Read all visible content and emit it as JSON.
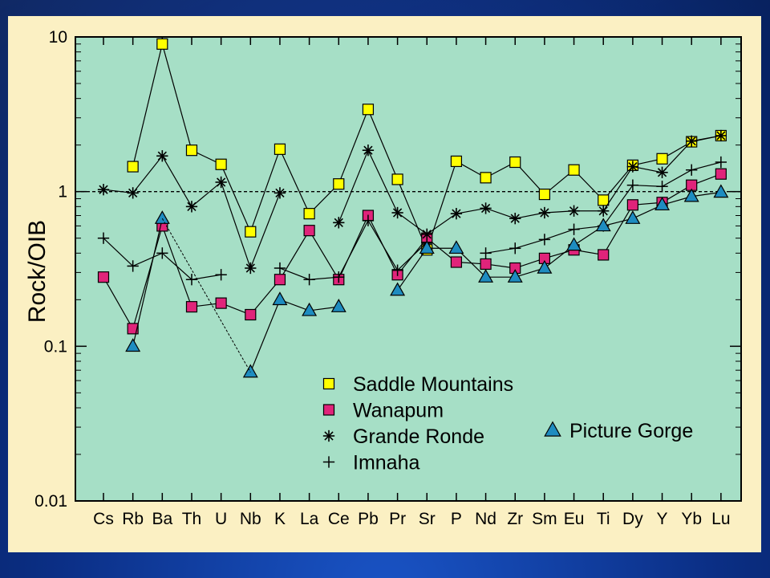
{
  "chart_data": {
    "type": "line",
    "ylabel": "Rock/OIB",
    "xlabel": "",
    "yscale": "log",
    "ylim": [
      0.01,
      10
    ],
    "yticks": [
      "0.01",
      "0.1",
      "1",
      "10"
    ],
    "reference_line": 1,
    "categories": [
      "Cs",
      "Rb",
      "Ba",
      "Th",
      "U",
      "Nb",
      "K",
      "La",
      "Ce",
      "Pb",
      "Pr",
      "Sr",
      "P",
      "Nd",
      "Zr",
      "Sm",
      "Eu",
      "Ti",
      "Dy",
      "Y",
      "Yb",
      "Lu"
    ],
    "series": [
      {
        "name": "Saddle Mountains",
        "marker": "square",
        "color": "#ffff00",
        "values": [
          null,
          1.45,
          9.0,
          1.85,
          1.5,
          0.55,
          1.88,
          0.72,
          1.12,
          3.4,
          1.2,
          0.42,
          1.57,
          1.23,
          1.55,
          0.96,
          1.38,
          0.88,
          1.48,
          1.63,
          2.1,
          2.3
        ]
      },
      {
        "name": "Wanapum",
        "marker": "square",
        "color": "#e0247a",
        "values": [
          0.28,
          0.13,
          0.6,
          0.18,
          0.19,
          0.16,
          0.27,
          0.56,
          0.27,
          0.7,
          0.29,
          0.5,
          0.35,
          0.34,
          0.32,
          0.37,
          0.42,
          0.39,
          0.82,
          0.85,
          1.1,
          1.3
        ]
      },
      {
        "name": "Grande Ronde",
        "marker": "asterisk",
        "color": "#000000",
        "values": [
          1.03,
          0.98,
          1.7,
          0.8,
          1.15,
          0.32,
          0.98,
          null,
          0.63,
          1.85,
          0.73,
          0.53,
          0.72,
          0.78,
          0.67,
          0.73,
          0.75,
          0.75,
          1.45,
          1.33,
          2.12,
          2.3
        ]
      },
      {
        "name": "Imnaha",
        "marker": "plus",
        "color": "#000000",
        "values": [
          0.5,
          0.33,
          0.4,
          0.27,
          0.29,
          null,
          0.32,
          0.27,
          0.28,
          0.65,
          0.31,
          0.47,
          null,
          0.4,
          0.43,
          0.49,
          0.57,
          0.6,
          1.1,
          1.08,
          1.38,
          1.55
        ]
      },
      {
        "name": "Picture Gorge",
        "marker": "triangle",
        "color": "#1e8cc0",
        "values": [
          null,
          0.1,
          0.67,
          null,
          null,
          0.068,
          0.2,
          0.17,
          0.18,
          null,
          0.23,
          0.43,
          0.43,
          0.28,
          0.28,
          0.32,
          0.45,
          0.6,
          0.67,
          0.82,
          0.93,
          0.99
        ]
      }
    ],
    "legend": {
      "left_column": [
        "Saddle Mountains",
        "Wanapum",
        "Grande Ronde",
        "Imnaha"
      ],
      "right_column": [
        "Picture Gorge"
      ]
    },
    "colors": {
      "plot_background": "#a6dfc6",
      "slide_background": "#0b2f86",
      "frame": "#fbf0c3"
    }
  }
}
